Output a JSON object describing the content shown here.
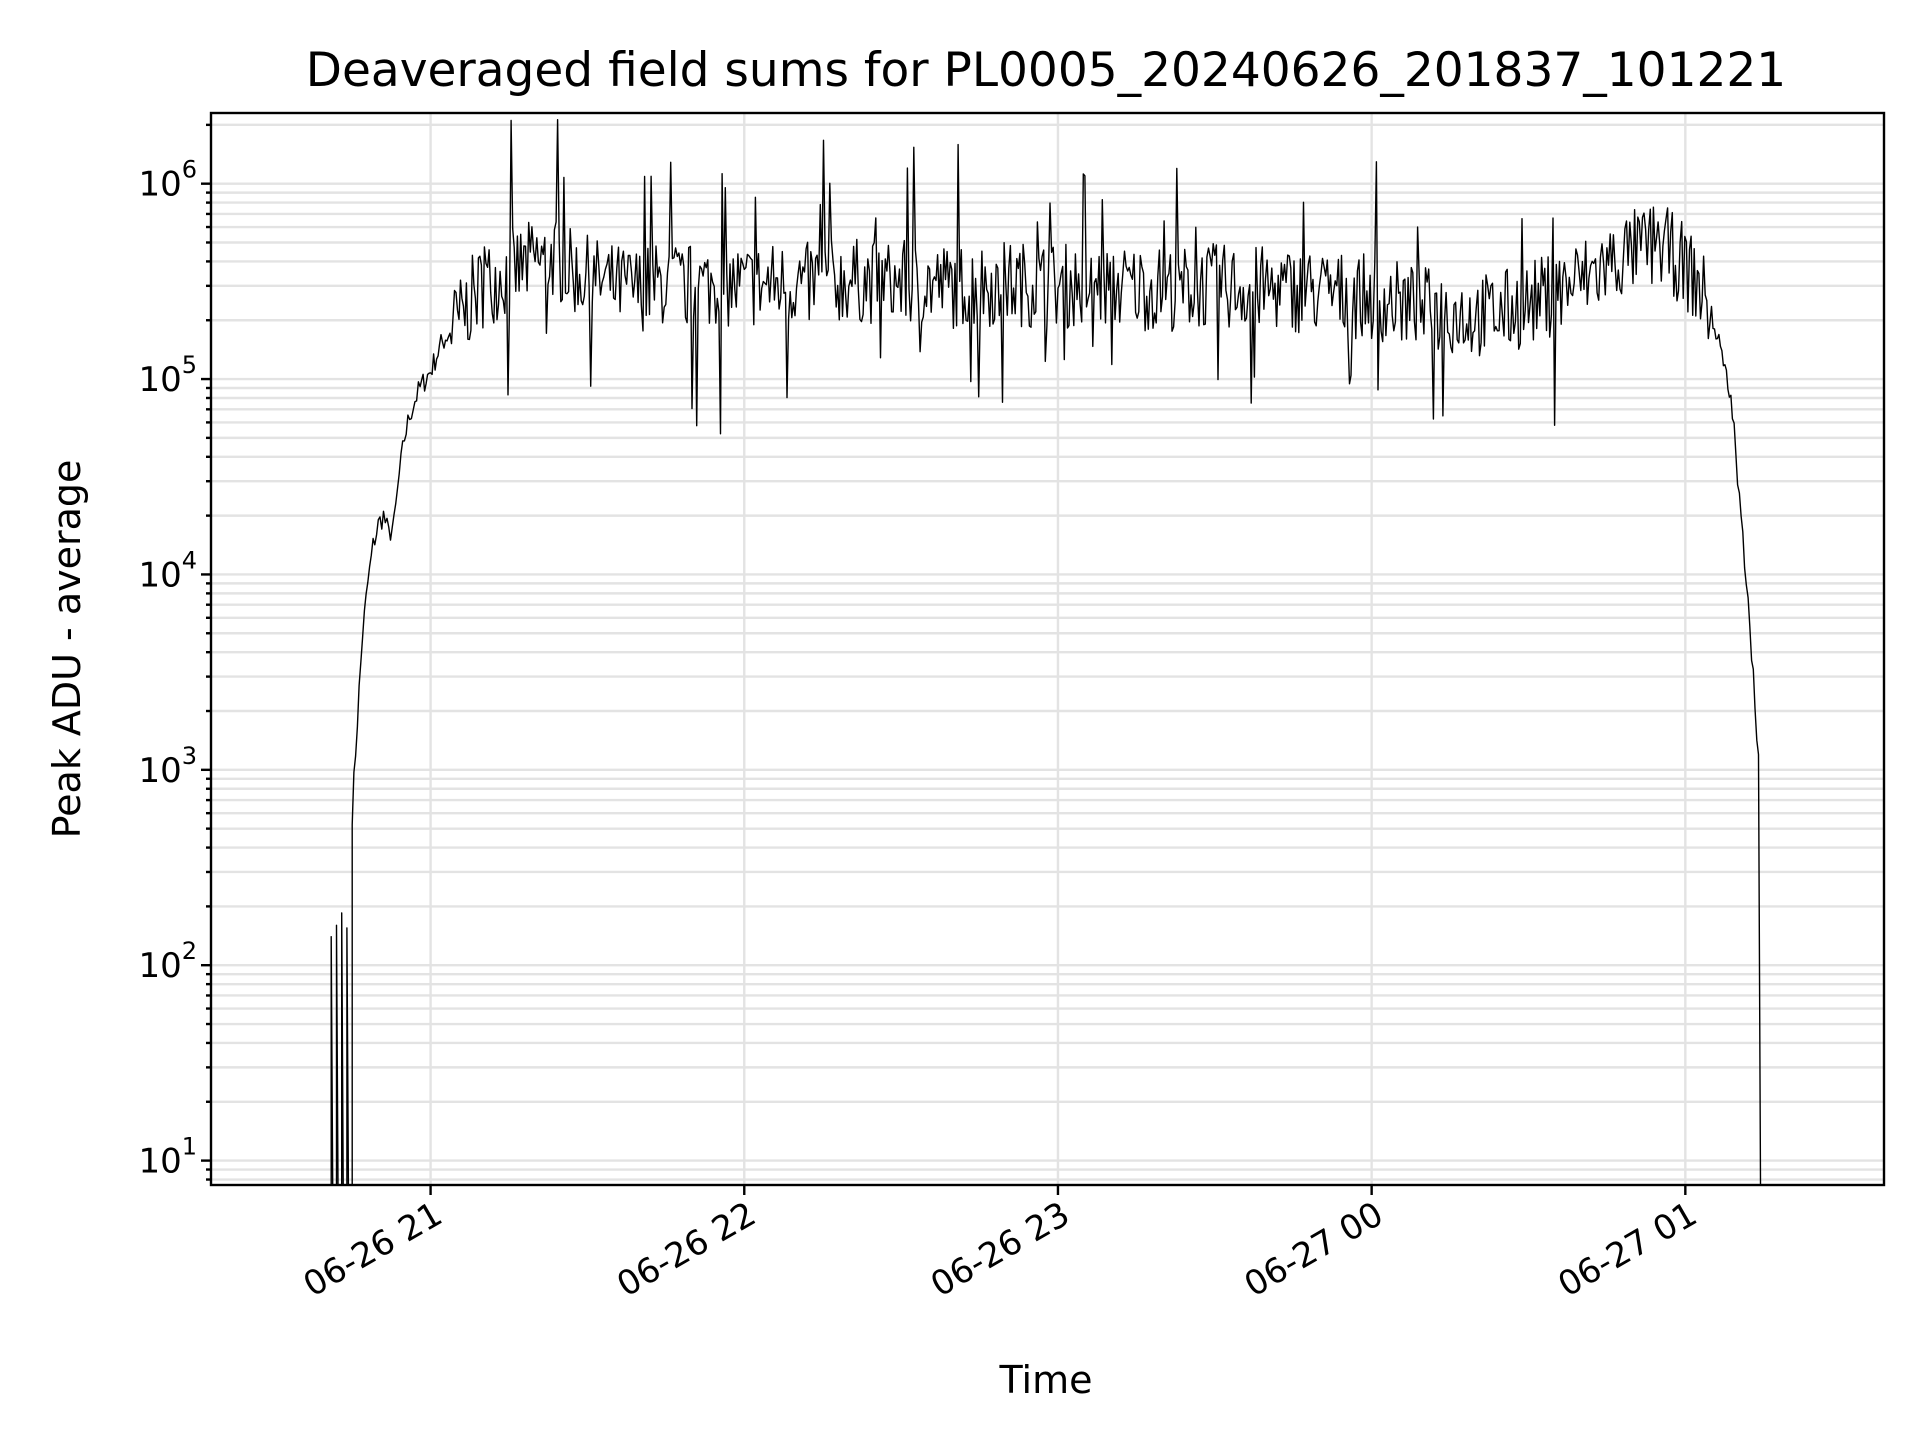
{
  "chart_data": {
    "type": "line",
    "title": "Deaveraged field sums for PL0005_20240626_201837_101221",
    "xlabel": "Time",
    "ylabel": "Peak ADU - average",
    "yscale": "log",
    "ylim": [
      7.5,
      2300000
    ],
    "xlim": [
      "2024-06-26 20:18",
      "2024-06-27 01:38"
    ],
    "grid": true,
    "legend": "none",
    "line_color": "#000000",
    "x_ticks": [
      {
        "t": "2024-06-26 21:00",
        "label": "06-26 21"
      },
      {
        "t": "2024-06-26 22:00",
        "label": "06-26 22"
      },
      {
        "t": "2024-06-26 23:00",
        "label": "06-26 23"
      },
      {
        "t": "2024-06-27 00:00",
        "label": "06-27 00"
      },
      {
        "t": "2024-06-27 01:00",
        "label": "06-27 01"
      }
    ],
    "y_ticks": [
      {
        "value": 10,
        "base": "10",
        "exp": "1"
      },
      {
        "value": 100,
        "base": "10",
        "exp": "2"
      },
      {
        "value": 1000,
        "base": "10",
        "exp": "3"
      },
      {
        "value": 10000,
        "base": "10",
        "exp": "4"
      },
      {
        "value": 100000,
        "base": "10",
        "exp": "5"
      },
      {
        "value": 1000000,
        "base": "10",
        "exp": "6"
      }
    ],
    "series": [
      {
        "points": [
          [
            "2024-06-26 20:41",
            140
          ],
          [
            "2024-06-26 20:42",
            160
          ],
          [
            "2024-06-26 20:43",
            185
          ],
          [
            "2024-06-26 20:44",
            155
          ],
          [
            "2024-06-26 20:45",
            600
          ],
          [
            "2024-06-26 20:46",
            1800
          ],
          [
            "2024-06-26 20:47",
            5000
          ],
          [
            "2024-06-26 20:48",
            9000
          ],
          [
            "2024-06-26 20:49",
            14000
          ],
          [
            "2024-06-26 20:50",
            18000
          ],
          [
            "2024-06-26 20:51",
            20000
          ],
          [
            "2024-06-26 20:52",
            16000
          ],
          [
            "2024-06-26 20:53",
            18000
          ],
          [
            "2024-06-26 20:54",
            32000
          ],
          [
            "2024-06-26 20:55",
            50000
          ],
          [
            "2024-06-26 20:56",
            65000
          ],
          [
            "2024-06-26 20:57",
            78000
          ],
          [
            "2024-06-26 20:58",
            90000
          ],
          [
            "2024-06-26 21:00",
            110000
          ],
          [
            "2024-06-26 21:02",
            150000
          ],
          [
            "2024-06-26 21:04",
            180000
          ],
          [
            "2024-06-26 21:06",
            210000
          ],
          [
            "2024-06-26 21:08",
            260000
          ],
          [
            "2024-06-26 21:10",
            300000
          ],
          [
            "2024-06-26 21:13",
            330000
          ],
          [
            "2024-06-26 21:16",
            360000
          ],
          [
            "2024-06-26 21:20",
            400000
          ],
          [
            "2024-06-26 21:24",
            420000
          ],
          [
            "2024-06-26 21:27",
            350000
          ],
          [
            "2024-06-26 21:30",
            330000
          ],
          [
            "2024-06-26 21:35",
            300000
          ],
          [
            "2024-06-26 21:40",
            290000
          ],
          [
            "2024-06-26 21:45",
            310000
          ],
          [
            "2024-06-26 21:50",
            300000
          ],
          [
            "2024-06-26 22:00",
            300000
          ],
          [
            "2024-06-26 22:10",
            310000
          ],
          [
            "2024-06-26 22:20",
            320000
          ],
          [
            "2024-06-26 22:30",
            310000
          ],
          [
            "2024-06-26 22:40",
            300000
          ],
          [
            "2024-06-26 22:50",
            310000
          ],
          [
            "2024-06-26 23:00",
            300000
          ],
          [
            "2024-06-26 23:10",
            300000
          ],
          [
            "2024-06-26 23:20",
            290000
          ],
          [
            "2024-06-26 23:30",
            300000
          ],
          [
            "2024-06-26 23:40",
            290000
          ],
          [
            "2024-06-26 23:50",
            280000
          ],
          [
            "2024-06-27 00:00",
            260000
          ],
          [
            "2024-06-27 00:10",
            230000
          ],
          [
            "2024-06-27 00:20",
            210000
          ],
          [
            "2024-06-27 00:25",
            220000
          ],
          [
            "2024-06-27 00:30",
            240000
          ],
          [
            "2024-06-27 00:35",
            280000
          ],
          [
            "2024-06-27 00:40",
            320000
          ],
          [
            "2024-06-27 00:45",
            380000
          ],
          [
            "2024-06-27 00:50",
            450000
          ],
          [
            "2024-06-27 00:53",
            480000
          ],
          [
            "2024-06-27 00:56",
            470000
          ],
          [
            "2024-06-27 00:59",
            400000
          ],
          [
            "2024-06-27 01:02",
            320000
          ],
          [
            "2024-06-27 01:05",
            220000
          ],
          [
            "2024-06-27 01:07",
            130000
          ],
          [
            "2024-06-27 01:09",
            70000
          ],
          [
            "2024-06-27 01:10",
            30000
          ],
          [
            "2024-06-27 01:11",
            15000
          ],
          [
            "2024-06-27 01:12",
            8000
          ],
          [
            "2024-06-27 01:13",
            3000
          ],
          [
            "2024-06-27 01:14",
            1200
          ]
        ]
      }
    ]
  }
}
